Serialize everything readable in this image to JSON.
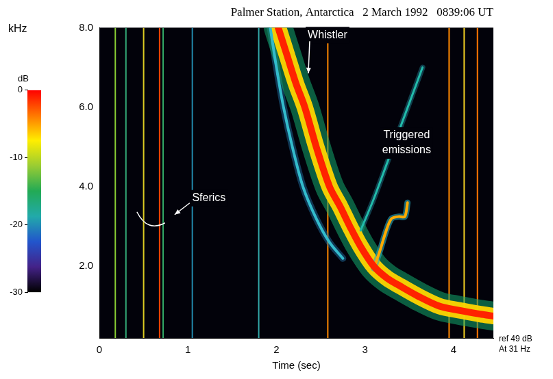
{
  "chart_data": {
    "type": "spectrogram",
    "title": "Palmer Station, Antarctica   2 March 1992   0839:06 UT",
    "x_label": "Time (sec)",
    "y_label": "kHz",
    "xlim": [
      0,
      4.45
    ],
    "xticks": [
      0,
      1,
      2,
      3,
      4
    ],
    "ylim": [
      0.2,
      8.0
    ],
    "yticks": [
      {
        "value": 2,
        "label": "2.0"
      },
      {
        "value": 4,
        "label": "4.0"
      },
      {
        "value": 6,
        "label": "6.0"
      },
      {
        "value": 8,
        "label": "8.0"
      }
    ],
    "grid": false,
    "sferics": {
      "x": [
        0.18,
        0.3,
        0.5,
        0.68,
        0.72,
        1.05,
        1.8,
        2.58,
        3.95,
        4.12,
        4.27
      ],
      "colors": [
        "#88cc33",
        "#33aa77",
        "#ddcc22",
        "#ff4400",
        "#33aa66",
        "#2288aa",
        "#33aaaa",
        "#ff8800",
        "#ff8800",
        "#eecc22",
        "#ff7700"
      ]
    },
    "series": [
      {
        "color": "#ff2200",
        "x": [
          2.02,
          2.12,
          2.22,
          2.32,
          2.45,
          2.6,
          2.72,
          2.83,
          2.95,
          3.1,
          3.25,
          3.4,
          3.6,
          3.84,
          4.05,
          4.3,
          4.45
        ],
        "values": [
          8.0,
          7.3,
          6.6,
          6.0,
          5.0,
          4.0,
          3.5,
          3.0,
          2.5,
          2.0,
          1.7,
          1.5,
          1.25,
          1.0,
          0.9,
          0.8,
          0.75
        ]
      },
      {
        "color": "#33bbcc",
        "x": [
          1.93,
          2.0,
          2.08,
          2.18,
          2.3,
          2.45,
          2.6,
          2.75
        ],
        "values": [
          8.0,
          7.0,
          6.0,
          5.0,
          4.0,
          3.2,
          2.6,
          2.2
        ]
      },
      {
        "color": "#ffaa00",
        "x": [
          3.1,
          3.17,
          3.24,
          3.3,
          3.38,
          3.45,
          3.48
        ],
        "values": [
          1.95,
          2.4,
          2.9,
          3.2,
          3.25,
          3.25,
          3.6
        ]
      },
      {
        "color": "#22bbaa",
        "x": [
          2.95,
          3.1,
          3.25,
          3.4,
          3.55,
          3.65
        ],
        "values": [
          2.9,
          3.7,
          4.6,
          5.5,
          6.4,
          7.0
        ]
      }
    ],
    "annotations": [
      {
        "text": "Whistler",
        "x": 2.36,
        "y": 6.85
      },
      {
        "text": "Sferics",
        "x": 0.85,
        "y": 3.3
      },
      {
        "text": "Triggered emissions",
        "x": 3.47,
        "y": 5.1
      }
    ],
    "notes": [
      "ref 49 dB",
      "At 31 Hz"
    ],
    "colorbar": {
      "label": "dB",
      "range": [
        -30,
        0
      ],
      "ticks": [
        0,
        -10,
        -20,
        -30
      ],
      "colors": [
        "#ff0000",
        "#ff7700",
        "#ffee00",
        "#99cc33",
        "#22aa55",
        "#22aaaa",
        "#2255cc",
        "#442288",
        "#000000"
      ]
    }
  }
}
